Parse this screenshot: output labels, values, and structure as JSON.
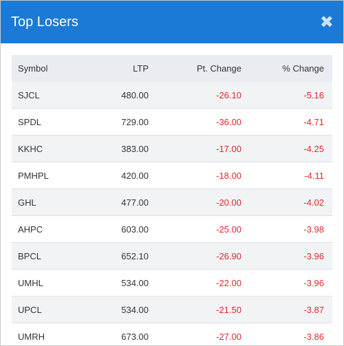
{
  "dialog": {
    "title": "Top Losers",
    "close_label": "✖"
  },
  "table": {
    "headers": {
      "symbol": "Symbol",
      "ltp": "LTP",
      "pt_change": "Pt. Change",
      "pct_change": "% Change"
    },
    "rows": [
      {
        "symbol": "SJCL",
        "ltp": "480.00",
        "pt_change": "-26.10",
        "pct_change": "-5.16"
      },
      {
        "symbol": "SPDL",
        "ltp": "729.00",
        "pt_change": "-36.00",
        "pct_change": "-4.71"
      },
      {
        "symbol": "KKHC",
        "ltp": "383.00",
        "pt_change": "-17.00",
        "pct_change": "-4.25"
      },
      {
        "symbol": "PMHPL",
        "ltp": "420.00",
        "pt_change": "-18.00",
        "pct_change": "-4.11"
      },
      {
        "symbol": "GHL",
        "ltp": "477.00",
        "pt_change": "-20.00",
        "pct_change": "-4.02"
      },
      {
        "symbol": "AHPC",
        "ltp": "603.00",
        "pt_change": "-25.00",
        "pct_change": "-3.98"
      },
      {
        "symbol": "BPCL",
        "ltp": "652.10",
        "pt_change": "-26.90",
        "pct_change": "-3.96"
      },
      {
        "symbol": "UMHL",
        "ltp": "534.00",
        "pt_change": "-22.00",
        "pct_change": "-3.96"
      },
      {
        "symbol": "UPCL",
        "ltp": "534.00",
        "pt_change": "-21.50",
        "pct_change": "-3.87"
      },
      {
        "symbol": "UMRH",
        "ltp": "673.00",
        "pt_change": "-27.00",
        "pct_change": "-3.86"
      }
    ]
  },
  "colors": {
    "header_bg": "#1a7ad6",
    "negative": "#e0262b",
    "table_header_bg": "#e9edf1"
  }
}
